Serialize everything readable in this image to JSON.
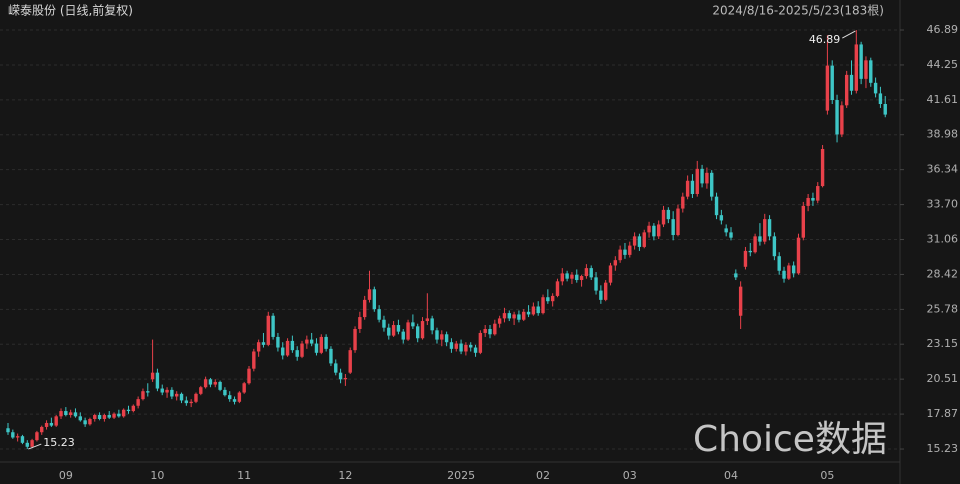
{
  "chart_data": {
    "type": "candlestick",
    "title": "嵘泰股份 (日线,前复权)",
    "range_label": "2024/8/16-2025/5/23(183根)",
    "watermark": "Choice数据",
    "high_label": "46.89",
    "low_label": "15.23",
    "up_color": "#e8414a",
    "down_color": "#3ec6c6",
    "grid": true,
    "ylim": [
      14.25,
      48.78
    ],
    "yticks": [
      15.23,
      17.87,
      20.51,
      23.15,
      25.78,
      28.42,
      31.06,
      {
        "value": 33.7,
        "label": "33.70"
      },
      36.34,
      38.98,
      41.61,
      44.25,
      46.89
    ],
    "x_labels": [
      {
        "index": 12,
        "label": "09"
      },
      {
        "index": 31,
        "label": "10"
      },
      {
        "index": 49,
        "label": "11"
      },
      {
        "index": 70,
        "label": "12"
      },
      {
        "index": 94,
        "label": "2025"
      },
      {
        "index": 111,
        "label": "02"
      },
      {
        "index": 129,
        "label": "03"
      },
      {
        "index": 150,
        "label": "04"
      },
      {
        "index": 170,
        "label": "05"
      }
    ],
    "ohlc": [
      [
        16.8,
        17.2,
        16.3,
        16.5
      ],
      [
        16.5,
        16.7,
        16.0,
        16.1
      ],
      [
        16.1,
        16.4,
        15.8,
        16.2
      ],
      [
        16.2,
        16.3,
        15.6,
        15.7
      ],
      [
        15.7,
        15.9,
        15.23,
        15.4
      ],
      [
        15.4,
        16.0,
        15.3,
        15.9
      ],
      [
        15.9,
        16.6,
        15.8,
        16.5
      ],
      [
        16.5,
        17.0,
        16.3,
        16.9
      ],
      [
        16.9,
        17.4,
        16.7,
        17.2
      ],
      [
        17.2,
        17.6,
        16.9,
        17.0
      ],
      [
        17.0,
        17.8,
        16.9,
        17.7
      ],
      [
        17.7,
        18.3,
        17.5,
        18.1
      ],
      [
        18.1,
        18.4,
        17.7,
        17.8
      ],
      [
        17.8,
        18.2,
        17.6,
        18.0
      ],
      [
        18.0,
        18.3,
        17.6,
        17.7
      ],
      [
        17.7,
        18.0,
        17.3,
        17.4
      ],
      [
        17.4,
        17.6,
        16.9,
        17.1
      ],
      [
        17.1,
        17.6,
        17.0,
        17.5
      ],
      [
        17.5,
        17.9,
        17.3,
        17.8
      ],
      [
        17.8,
        18.0,
        17.4,
        17.5
      ],
      [
        17.5,
        17.9,
        17.3,
        17.8
      ],
      [
        17.8,
        18.1,
        17.5,
        17.6
      ],
      [
        17.6,
        18.0,
        17.5,
        17.9
      ],
      [
        17.9,
        18.2,
        17.6,
        17.7
      ],
      [
        17.7,
        18.3,
        17.6,
        18.2
      ],
      [
        18.2,
        18.5,
        17.9,
        18.1
      ],
      [
        18.1,
        18.6,
        18.0,
        18.5
      ],
      [
        18.5,
        19.2,
        18.3,
        19.0
      ],
      [
        19.0,
        19.8,
        18.9,
        19.6
      ],
      [
        19.6,
        20.2,
        19.2,
        19.5
      ],
      [
        20.5,
        23.5,
        20.3,
        21.0
      ],
      [
        21.0,
        21.3,
        19.6,
        19.8
      ],
      [
        19.8,
        20.1,
        19.3,
        19.5
      ],
      [
        19.5,
        19.9,
        19.1,
        19.7
      ],
      [
        19.7,
        19.9,
        19.0,
        19.2
      ],
      [
        19.2,
        19.6,
        18.9,
        19.4
      ],
      [
        19.4,
        19.5,
        18.7,
        18.9
      ],
      [
        18.9,
        19.2,
        18.5,
        18.7
      ],
      [
        18.7,
        19.0,
        18.4,
        18.8
      ],
      [
        18.8,
        19.5,
        18.7,
        19.4
      ],
      [
        19.4,
        20.0,
        19.3,
        19.9
      ],
      [
        19.9,
        20.7,
        19.8,
        20.5
      ],
      [
        20.5,
        20.6,
        19.9,
        20.1
      ],
      [
        20.1,
        20.5,
        19.9,
        20.3
      ],
      [
        20.3,
        20.4,
        19.6,
        19.7
      ],
      [
        19.7,
        19.9,
        19.2,
        19.3
      ],
      [
        19.3,
        19.6,
        18.8,
        19.0
      ],
      [
        19.0,
        19.2,
        18.6,
        18.8
      ],
      [
        18.8,
        19.6,
        18.7,
        19.5
      ],
      [
        19.5,
        20.3,
        19.4,
        20.2
      ],
      [
        20.2,
        21.5,
        20.1,
        21.3
      ],
      [
        21.3,
        22.8,
        21.1,
        22.6
      ],
      [
        22.6,
        23.5,
        22.2,
        23.3
      ],
      [
        23.3,
        24.0,
        22.9,
        23.1
      ],
      [
        23.1,
        25.6,
        23.0,
        25.3
      ],
      [
        25.3,
        25.5,
        23.5,
        23.7
      ],
      [
        23.7,
        24.0,
        22.6,
        22.9
      ],
      [
        22.9,
        23.3,
        22.0,
        22.3
      ],
      [
        22.3,
        23.6,
        22.2,
        23.4
      ],
      [
        23.4,
        23.8,
        22.5,
        22.7
      ],
      [
        22.7,
        23.0,
        21.9,
        22.2
      ],
      [
        22.2,
        23.4,
        22.1,
        23.2
      ],
      [
        23.2,
        23.8,
        22.8,
        23.5
      ],
      [
        23.5,
        24.0,
        23.0,
        23.2
      ],
      [
        23.2,
        23.6,
        22.3,
        22.5
      ],
      [
        22.5,
        23.9,
        22.4,
        23.7
      ],
      [
        23.7,
        23.9,
        22.6,
        22.8
      ],
      [
        22.8,
        23.0,
        21.5,
        21.7
      ],
      [
        21.7,
        22.0,
        20.8,
        21.0
      ],
      [
        21.0,
        21.3,
        20.2,
        20.5
      ],
      [
        20.5,
        20.9,
        20.0,
        20.6
      ],
      [
        21.0,
        22.9,
        20.9,
        22.7
      ],
      [
        22.7,
        24.5,
        22.5,
        24.3
      ],
      [
        24.3,
        25.6,
        24.0,
        25.2
      ],
      [
        25.2,
        26.8,
        25.0,
        26.5
      ],
      [
        26.5,
        28.7,
        26.3,
        27.3
      ],
      [
        27.3,
        27.5,
        25.6,
        25.8
      ],
      [
        25.8,
        26.1,
        24.8,
        25.0
      ],
      [
        25.0,
        25.3,
        24.1,
        24.4
      ],
      [
        24.4,
        24.7,
        23.5,
        23.8
      ],
      [
        23.8,
        24.9,
        23.7,
        24.6
      ],
      [
        24.6,
        25.0,
        23.9,
        24.1
      ],
      [
        24.1,
        24.3,
        23.2,
        23.5
      ],
      [
        23.5,
        25.0,
        23.4,
        24.8
      ],
      [
        24.8,
        25.4,
        24.3,
        24.5
      ],
      [
        24.5,
        24.7,
        23.3,
        23.6
      ],
      [
        23.6,
        25.2,
        23.5,
        24.9
      ],
      [
        24.9,
        27.0,
        24.6,
        25.1
      ],
      [
        25.1,
        25.3,
        23.9,
        24.2
      ],
      [
        24.2,
        24.4,
        23.2,
        23.5
      ],
      [
        23.5,
        24.2,
        23.0,
        23.9
      ],
      [
        23.9,
        24.1,
        23.0,
        23.3
      ],
      [
        23.3,
        23.6,
        22.5,
        22.8
      ],
      [
        22.8,
        23.4,
        22.6,
        23.2
      ],
      [
        23.2,
        23.5,
        22.4,
        22.6
      ],
      [
        22.6,
        23.3,
        22.3,
        23.1
      ],
      [
        23.1,
        23.3,
        22.6,
        22.9
      ],
      [
        22.9,
        23.1,
        22.2,
        22.5
      ],
      [
        22.5,
        24.2,
        22.4,
        24.0
      ],
      [
        24.0,
        24.6,
        23.7,
        24.3
      ],
      [
        24.3,
        24.6,
        23.6,
        23.9
      ],
      [
        23.9,
        25.0,
        23.8,
        24.7
      ],
      [
        24.7,
        25.3,
        24.4,
        25.1
      ],
      [
        25.1,
        25.9,
        24.8,
        25.5
      ],
      [
        25.5,
        25.7,
        24.9,
        25.1
      ],
      [
        25.1,
        25.6,
        24.6,
        25.4
      ],
      [
        25.4,
        25.7,
        24.8,
        25.0
      ],
      [
        25.0,
        25.8,
        24.9,
        25.6
      ],
      [
        25.6,
        26.1,
        25.2,
        25.4
      ],
      [
        25.4,
        26.3,
        25.3,
        26.0
      ],
      [
        26.0,
        26.4,
        25.3,
        25.5
      ],
      [
        25.5,
        26.9,
        25.4,
        26.7
      ],
      [
        26.7,
        27.3,
        26.2,
        26.4
      ],
      [
        26.4,
        27.0,
        26.0,
        26.8
      ],
      [
        26.8,
        28.1,
        26.7,
        27.9
      ],
      [
        27.9,
        28.9,
        27.6,
        28.5
      ],
      [
        28.5,
        28.7,
        27.9,
        28.1
      ],
      [
        28.1,
        28.6,
        27.7,
        28.4
      ],
      [
        28.4,
        28.8,
        27.8,
        28.0
      ],
      [
        28.0,
        28.4,
        27.5,
        28.3
      ],
      [
        28.3,
        29.2,
        28.1,
        28.9
      ],
      [
        28.9,
        29.1,
        28.0,
        28.2
      ],
      [
        28.2,
        28.6,
        26.9,
        27.2
      ],
      [
        27.2,
        27.6,
        26.2,
        26.5
      ],
      [
        26.5,
        28.0,
        26.4,
        27.8
      ],
      [
        27.8,
        29.3,
        27.6,
        29.1
      ],
      [
        29.1,
        29.8,
        28.7,
        29.5
      ],
      [
        29.5,
        30.6,
        29.3,
        30.3
      ],
      [
        30.3,
        30.8,
        29.6,
        29.9
      ],
      [
        29.9,
        30.9,
        29.7,
        30.6
      ],
      [
        30.6,
        31.6,
        30.3,
        31.3
      ],
      [
        31.3,
        31.5,
        30.2,
        30.5
      ],
      [
        30.5,
        31.8,
        30.4,
        31.6
      ],
      [
        31.6,
        32.4,
        31.2,
        32.1
      ],
      [
        32.1,
        32.3,
        31.0,
        31.3
      ],
      [
        31.3,
        32.5,
        31.1,
        32.2
      ],
      [
        32.2,
        33.6,
        32.0,
        33.3
      ],
      [
        33.3,
        33.5,
        32.3,
        32.6
      ],
      [
        32.6,
        33.2,
        31.0,
        31.4
      ],
      [
        31.4,
        33.7,
        31.3,
        33.4
      ],
      [
        33.4,
        34.6,
        33.1,
        34.3
      ],
      [
        34.3,
        35.9,
        34.1,
        35.5
      ],
      [
        35.5,
        36.0,
        34.2,
        34.5
      ],
      [
        34.5,
        37.0,
        34.3,
        36.4
      ],
      [
        36.4,
        36.7,
        35.0,
        35.3
      ],
      [
        35.3,
        36.5,
        34.9,
        36.1
      ],
      [
        36.1,
        36.3,
        34.0,
        34.3
      ],
      [
        34.3,
        34.6,
        32.6,
        32.9
      ],
      [
        32.9,
        33.3,
        32.2,
        32.5
      ],
      [
        31.9,
        32.2,
        31.3,
        31.6
      ],
      [
        31.6,
        32.0,
        31.0,
        31.2
      ],
      [
        28.5,
        28.8,
        28.0,
        28.2
      ],
      [
        25.3,
        27.9,
        24.3,
        27.5
      ],
      [
        29.0,
        30.5,
        28.8,
        30.2
      ],
      [
        30.2,
        30.8,
        29.8,
        30.1
      ],
      [
        30.1,
        31.5,
        30.0,
        31.3
      ],
      [
        31.3,
        32.3,
        30.6,
        30.9
      ],
      [
        30.9,
        33.0,
        30.7,
        32.6
      ],
      [
        32.6,
        32.9,
        31.0,
        31.3
      ],
      [
        31.3,
        31.6,
        29.5,
        29.8
      ],
      [
        29.8,
        30.1,
        28.4,
        28.7
      ],
      [
        28.7,
        29.0,
        27.8,
        28.1
      ],
      [
        28.1,
        29.3,
        28.0,
        29.1
      ],
      [
        29.1,
        29.4,
        28.2,
        28.5
      ],
      [
        28.5,
        31.5,
        28.4,
        31.2
      ],
      [
        31.2,
        33.9,
        31.0,
        33.6
      ],
      [
        33.6,
        34.5,
        33.2,
        34.2
      ],
      [
        34.2,
        34.6,
        33.6,
        34.0
      ],
      [
        34.0,
        35.4,
        33.8,
        35.1
      ],
      [
        35.1,
        38.2,
        35.0,
        37.9
      ],
      [
        40.8,
        46.5,
        40.5,
        44.2
      ],
      [
        44.2,
        44.6,
        41.3,
        41.6
      ],
      [
        41.6,
        42.0,
        38.4,
        39.0
      ],
      [
        39.0,
        41.5,
        38.8,
        41.2
      ],
      [
        41.2,
        43.8,
        41.0,
        43.5
      ],
      [
        43.5,
        44.6,
        42.0,
        42.3
      ],
      [
        42.3,
        46.89,
        42.1,
        45.8
      ],
      [
        45.8,
        46.0,
        42.8,
        43.2
      ],
      [
        43.2,
        44.9,
        42.5,
        44.6
      ],
      [
        44.6,
        44.8,
        42.6,
        42.9
      ],
      [
        42.9,
        43.3,
        41.8,
        42.1
      ],
      [
        42.1,
        42.6,
        41.0,
        41.3
      ],
      [
        41.3,
        41.9,
        40.3,
        40.5
      ]
    ]
  }
}
